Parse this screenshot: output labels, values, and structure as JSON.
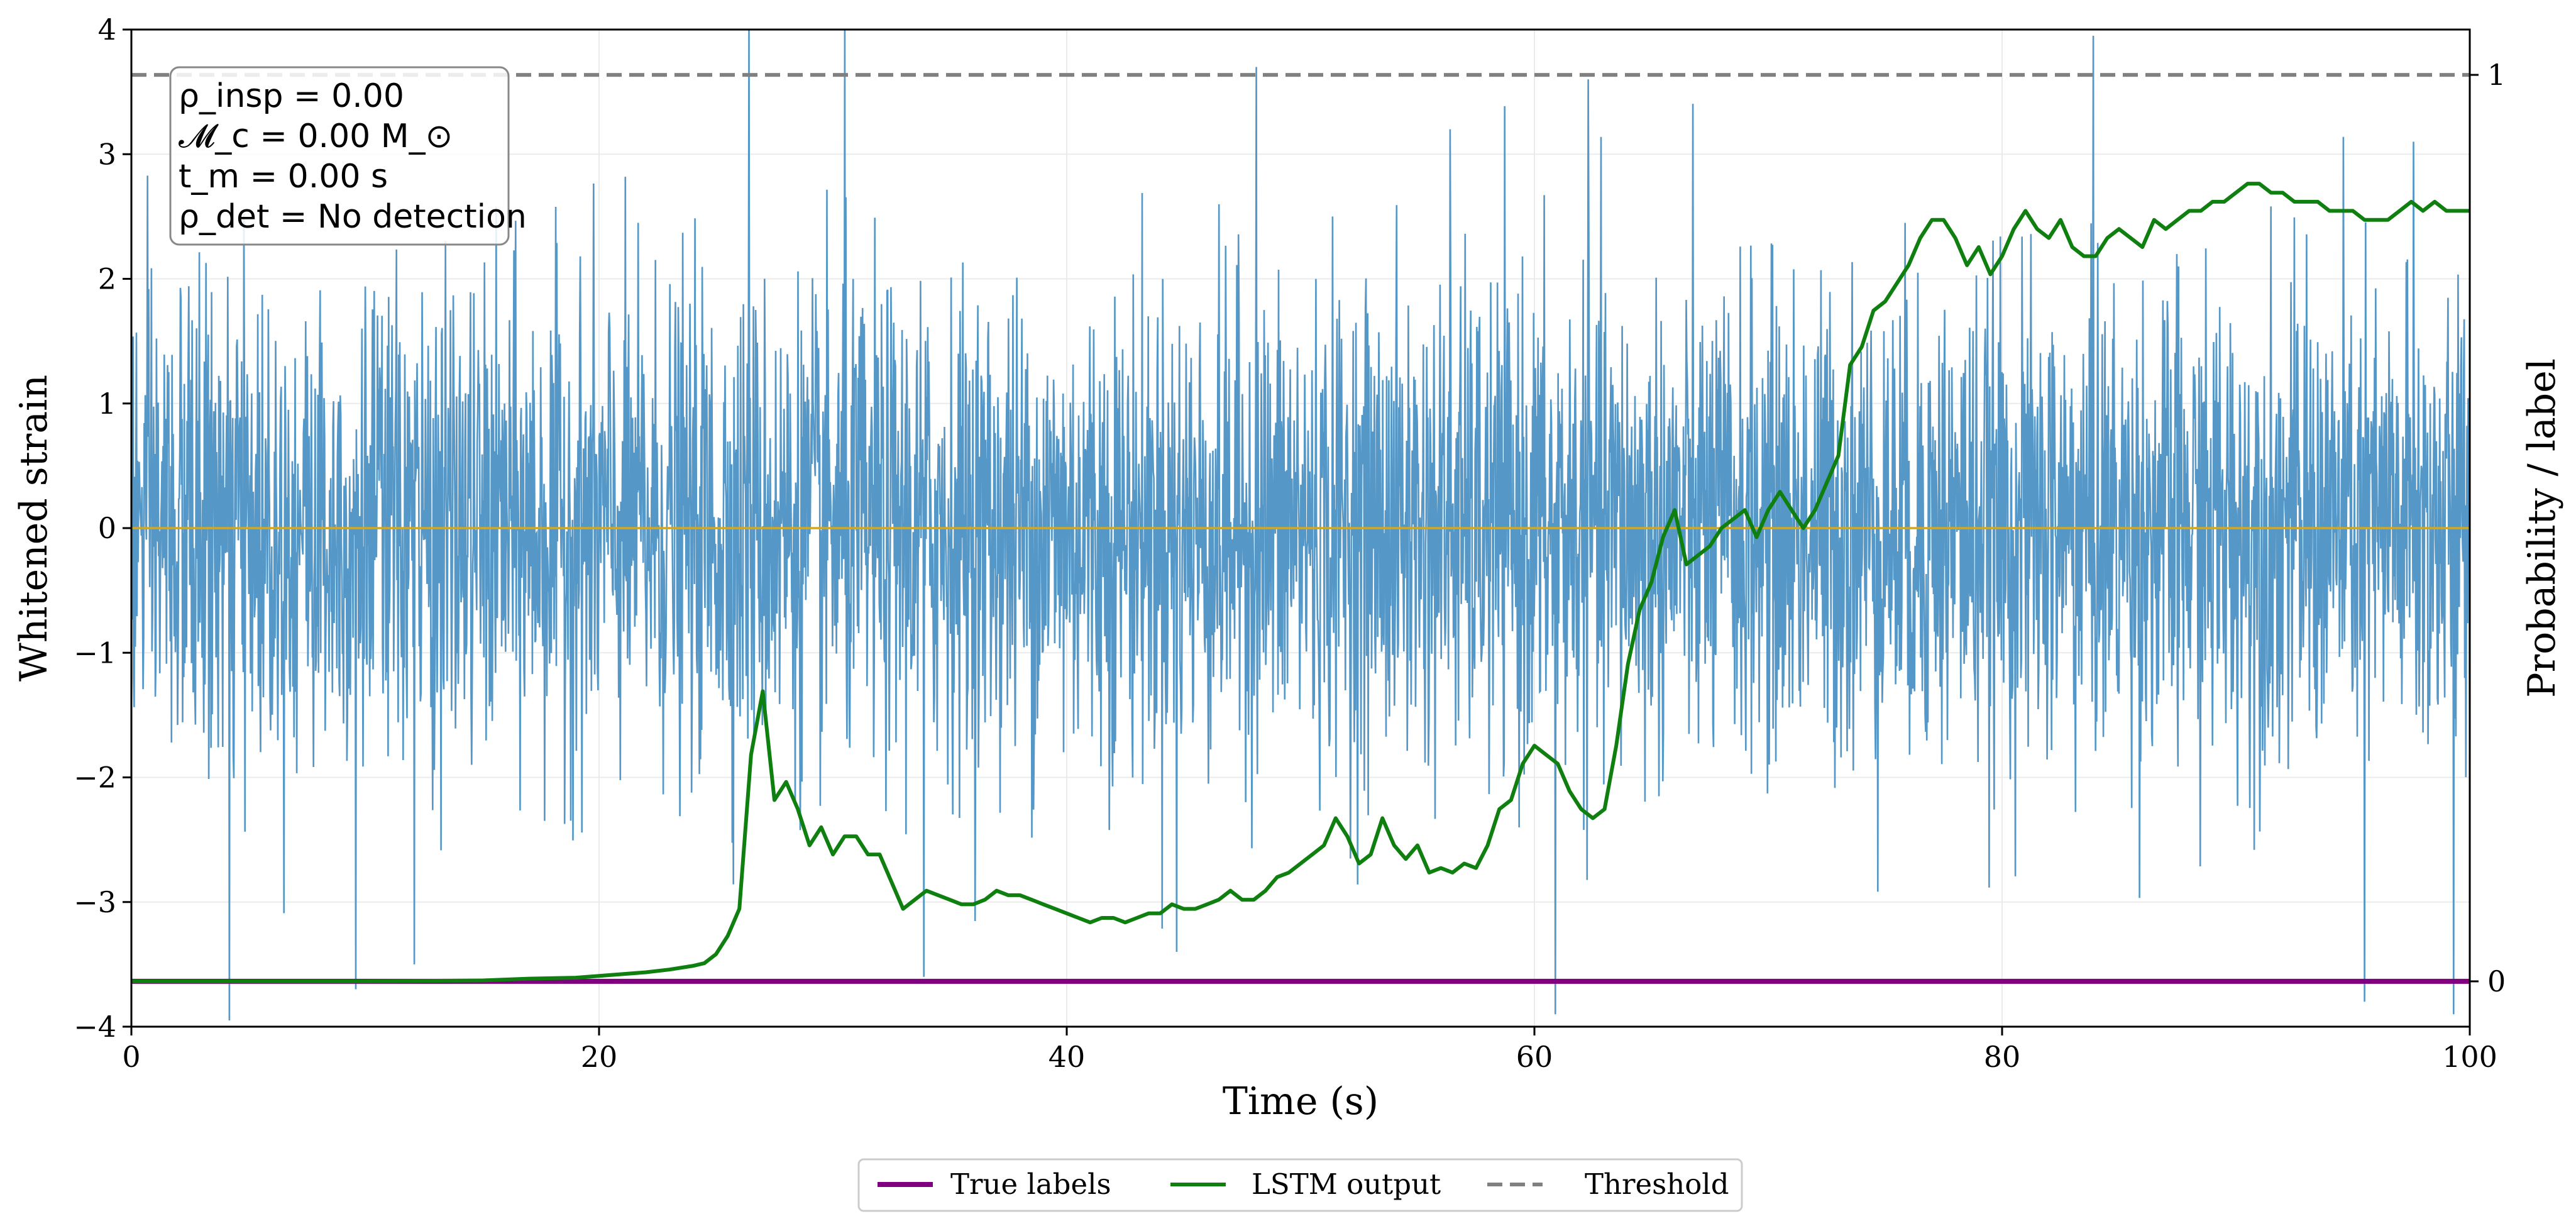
{
  "chart_data": {
    "type": "line",
    "title": "",
    "xlabel": "Time (s)",
    "ylabel": "Whitened strain",
    "y2label": "Probability / label",
    "xlim": [
      0,
      100
    ],
    "ylim": [
      -4,
      4
    ],
    "y2lim": [
      -0.05,
      1.05
    ],
    "xticks": [
      "0",
      "20",
      "40",
      "60",
      "80",
      "100"
    ],
    "yticks": [
      "−4",
      "−3",
      "−2",
      "−1",
      "0",
      "1",
      "2",
      "3",
      "4"
    ],
    "y2ticks": [
      "0",
      "1"
    ],
    "grid": true,
    "legend_position": "bottom-center",
    "info_box": {
      "rho_insp": "ρ_insp = 0.00",
      "chirp_mass": "𝓜_c = 0.00 M_⊙",
      "merger_time": "t_m = 0.00 s",
      "rho_det": "ρ_det = No detection"
    },
    "series": [
      {
        "name": "Whitened strain",
        "color": "#5597c6",
        "axis": "left",
        "description": "Gaussian-like noise, std about 1, spikes to about ±4",
        "spikes": [
          [
            4.2,
            -3.95
          ],
          [
            9.6,
            -3.7
          ],
          [
            26.4,
            4.0
          ],
          [
            30.5,
            4.0
          ],
          [
            33.9,
            -3.6
          ],
          [
            48.1,
            3.7
          ],
          [
            60.9,
            -3.9
          ],
          [
            62.3,
            3.6
          ],
          [
            83.9,
            3.95
          ],
          [
            95.5,
            -3.8
          ],
          [
            99.3,
            -3.9
          ],
          [
            97.6,
            3.1
          ],
          [
            44.7,
            -3.4
          ],
          [
            12.1,
            -3.5
          ],
          [
            56.4,
            3.2
          ]
        ]
      },
      {
        "name": "Zero line",
        "color": "#d4a81a",
        "axis": "left",
        "x": [
          0,
          100
        ],
        "values": [
          0,
          0
        ]
      },
      {
        "name": "True labels",
        "color": "#800080",
        "axis": "right",
        "x": [
          0,
          100
        ],
        "values": [
          0,
          0
        ]
      },
      {
        "name": "LSTM output",
        "color": "#0f7f0f",
        "axis": "right",
        "x": [
          0,
          5,
          10,
          15,
          17,
          19,
          20,
          21,
          22,
          23,
          24,
          24.5,
          25,
          25.5,
          26,
          26.5,
          27,
          27.5,
          28,
          28.5,
          29,
          29.5,
          30,
          30.5,
          31,
          31.5,
          32,
          32.5,
          33,
          33.5,
          34,
          34.5,
          35,
          35.5,
          36,
          36.5,
          37,
          37.5,
          38,
          38.5,
          39,
          39.5,
          40,
          40.5,
          41,
          41.5,
          42,
          42.5,
          43,
          43.5,
          44,
          44.5,
          45,
          45.5,
          46,
          46.5,
          47,
          47.5,
          48,
          48.5,
          49,
          49.5,
          50,
          50.5,
          51,
          51.5,
          52,
          52.5,
          53,
          53.5,
          54,
          54.5,
          55,
          55.5,
          56,
          56.5,
          57,
          57.5,
          58,
          58.5,
          59,
          59.5,
          60,
          60.5,
          61,
          61.5,
          62,
          62.5,
          63,
          63.5,
          64,
          64.5,
          65,
          65.5,
          66,
          66.5,
          67,
          67.5,
          68,
          68.5,
          69,
          69.5,
          70,
          70.5,
          71,
          71.5,
          72,
          72.5,
          73,
          73.5,
          74,
          74.5,
          75,
          75.5,
          76,
          76.5,
          77,
          77.5,
          78,
          78.5,
          79,
          79.5,
          80,
          80.5,
          81,
          81.5,
          82,
          82.5,
          83,
          83.5,
          84,
          84.5,
          85,
          85.5,
          86,
          86.5,
          87,
          87.5,
          88,
          88.5,
          89,
          89.5,
          90,
          90.5,
          91,
          91.5,
          92,
          92.5,
          93,
          93.5,
          94,
          94.5,
          95,
          95.5,
          96,
          96.5,
          97,
          97.5,
          98,
          98.5,
          99,
          99.5,
          100
        ],
        "values": [
          0.0,
          0.0,
          0.0,
          0.001,
          0.003,
          0.004,
          0.006,
          0.008,
          0.01,
          0.013,
          0.017,
          0.02,
          0.03,
          0.05,
          0.08,
          0.25,
          0.32,
          0.2,
          0.22,
          0.19,
          0.15,
          0.17,
          0.14,
          0.16,
          0.16,
          0.14,
          0.14,
          0.11,
          0.08,
          0.09,
          0.1,
          0.095,
          0.09,
          0.085,
          0.085,
          0.09,
          0.1,
          0.095,
          0.095,
          0.09,
          0.085,
          0.08,
          0.075,
          0.07,
          0.065,
          0.07,
          0.07,
          0.065,
          0.07,
          0.075,
          0.075,
          0.085,
          0.08,
          0.08,
          0.085,
          0.09,
          0.1,
          0.09,
          0.09,
          0.1,
          0.115,
          0.12,
          0.13,
          0.14,
          0.15,
          0.18,
          0.16,
          0.13,
          0.14,
          0.18,
          0.15,
          0.135,
          0.15,
          0.12,
          0.125,
          0.12,
          0.13,
          0.125,
          0.15,
          0.19,
          0.2,
          0.24,
          0.26,
          0.25,
          0.24,
          0.21,
          0.19,
          0.18,
          0.19,
          0.26,
          0.35,
          0.41,
          0.44,
          0.49,
          0.52,
          0.46,
          0.47,
          0.48,
          0.5,
          0.51,
          0.52,
          0.49,
          0.52,
          0.54,
          0.52,
          0.5,
          0.52,
          0.55,
          0.58,
          0.68,
          0.7,
          0.74,
          0.75,
          0.77,
          0.79,
          0.82,
          0.84,
          0.84,
          0.82,
          0.79,
          0.81,
          0.78,
          0.8,
          0.83,
          0.85,
          0.83,
          0.82,
          0.84,
          0.81,
          0.8,
          0.8,
          0.82,
          0.83,
          0.82,
          0.81,
          0.84,
          0.83,
          0.84,
          0.85,
          0.85,
          0.86,
          0.86,
          0.87,
          0.88,
          0.88,
          0.87,
          0.87,
          0.86,
          0.86,
          0.86,
          0.85,
          0.85,
          0.85,
          0.84,
          0.84,
          0.84,
          0.85,
          0.86,
          0.85,
          0.86,
          0.85,
          0.85,
          0.85
        ]
      },
      {
        "name": "Threshold",
        "color": "#808080",
        "axis": "right",
        "style": "dashed",
        "x": [
          0,
          100
        ],
        "values": [
          1,
          1
        ]
      }
    ],
    "legend": [
      {
        "label": "True labels",
        "color": "#800080",
        "style": "solid-thick"
      },
      {
        "label": "LSTM output",
        "color": "#0f7f0f",
        "style": "solid"
      },
      {
        "label": "Threshold",
        "color": "#808080",
        "style": "dashed"
      }
    ]
  }
}
